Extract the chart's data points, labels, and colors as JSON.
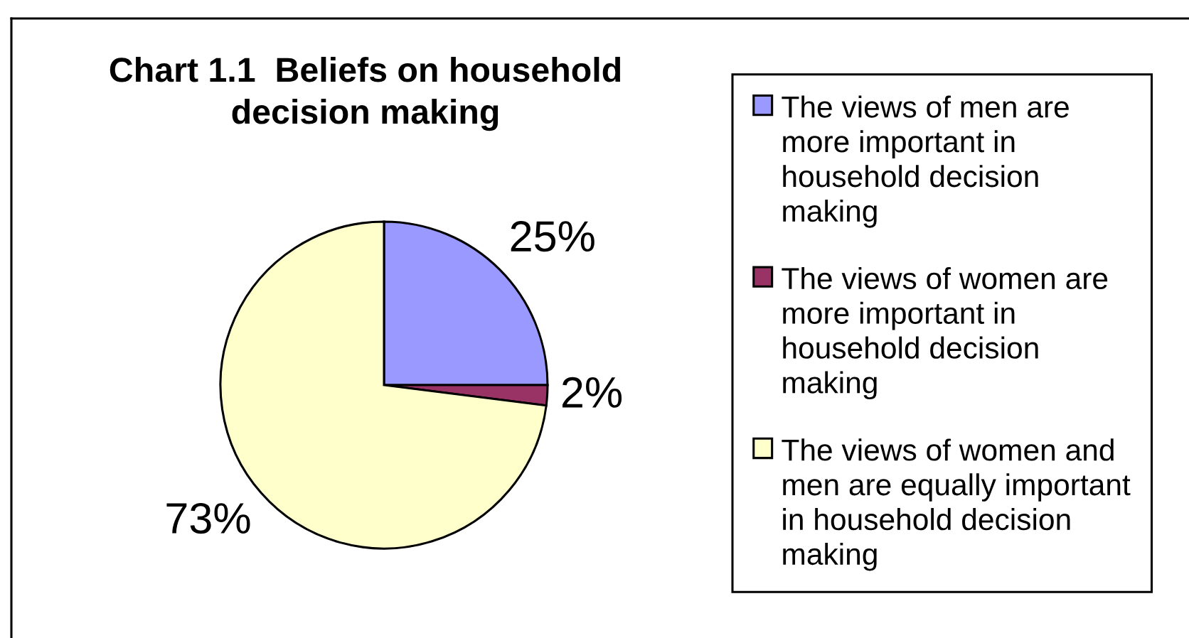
{
  "chart_data": {
    "type": "pie",
    "title": "Chart 1.1  Beliefs on household decision making",
    "categories": [
      "The views of men are more important in household decision making",
      "The views of women are more important in household decision making",
      "The views of women and men are equally important in household decision making"
    ],
    "values": [
      25,
      2,
      73
    ],
    "colors": [
      "#9999ff",
      "#993366",
      "#ffffcc"
    ],
    "value_labels": [
      "25%",
      "2%",
      "73%"
    ],
    "legend": "right"
  }
}
